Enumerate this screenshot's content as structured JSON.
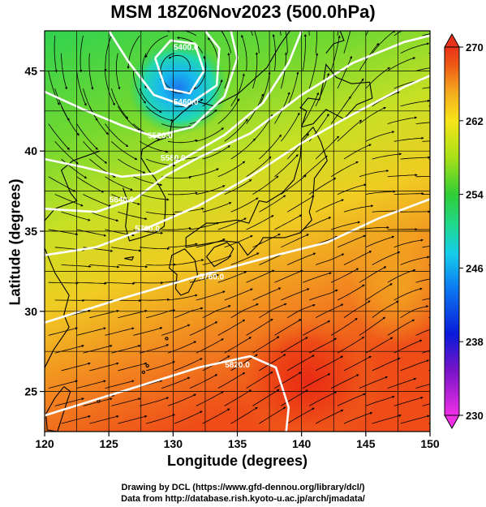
{
  "title": "MSM 18Z06Nov2023 (500.0hPa)",
  "xlabel": "Longitude (degrees)",
  "ylabel": "Latitude  (degrees)",
  "credits": {
    "line1": "Drawing by DCL (https://www.gfd-dennou.org/library/dcl/)",
    "line2": "Data from http://database.rish.kyoto-u.ac.jp/arch/jmadata/"
  },
  "map": {
    "lon_range": [
      120,
      150
    ],
    "lat_range": [
      22.5,
      47.5
    ],
    "lon_ticks": [
      120,
      125,
      130,
      135,
      140,
      145,
      150
    ],
    "lat_ticks": [
      25,
      30,
      35,
      40,
      45
    ],
    "gridlines": true,
    "field": "temperature",
    "low_center": {
      "lon": 130.5,
      "lat": 45.0
    }
  },
  "colorbar": {
    "min": 230,
    "max": 270,
    "ticks": [
      230,
      238,
      246,
      254,
      262,
      270
    ],
    "extend": "both",
    "colors": [
      "#ee2fe6",
      "#7a14c8",
      "#0a1ad8",
      "#0c7ef2",
      "#16cdea",
      "#20d88a",
      "#30cd36",
      "#a8e018",
      "#f6e418",
      "#f5a81f",
      "#f05a14",
      "#e8321c"
    ]
  },
  "contours": [
    {
      "label": "5820.0"
    },
    {
      "label": "5760.0"
    },
    {
      "label": "5700.0"
    },
    {
      "label": "5640.0"
    },
    {
      "label": "5580.0"
    },
    {
      "label": "5520.0"
    },
    {
      "label": "5460.0"
    },
    {
      "label": "5400.0"
    }
  ]
}
